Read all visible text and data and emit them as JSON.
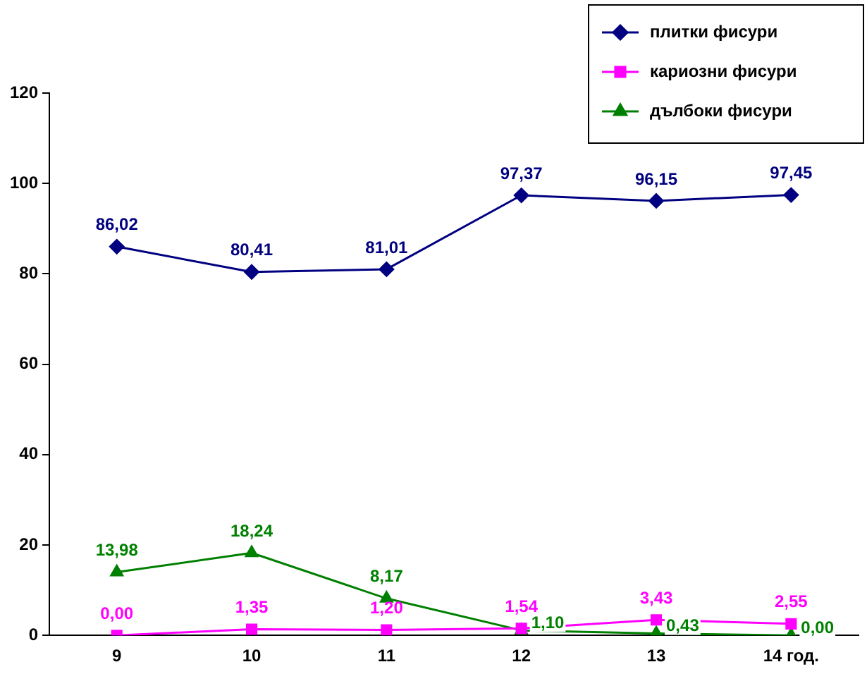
{
  "chart_data": {
    "type": "line",
    "categories": [
      "9",
      "10",
      "11",
      "12",
      "13",
      "14 год."
    ],
    "series": [
      {
        "name": "плитки фисури",
        "color": "#000080",
        "marker": "diamond",
        "values": [
          86.02,
          80.41,
          81.01,
          97.37,
          96.15,
          97.45
        ],
        "value_labels": [
          "86,02",
          "80,41",
          "81,01",
          "97,37",
          "96,15",
          "97,45"
        ]
      },
      {
        "name": "кариозни фисури",
        "color": "#ff00ff",
        "marker": "square",
        "values": [
          0.0,
          1.35,
          1.2,
          1.54,
          3.43,
          2.55
        ],
        "value_labels": [
          "0,00",
          "1,35",
          "1,20",
          "1,54",
          "3,43",
          "2,55"
        ]
      },
      {
        "name": "дълбоки фисури",
        "color": "#008000",
        "marker": "triangle",
        "values": [
          13.98,
          18.24,
          8.17,
          1.1,
          0.43,
          0.0
        ],
        "value_labels": [
          "13,98",
          "18,24",
          "8,17",
          "1,10",
          "0,43",
          "0,00"
        ]
      }
    ],
    "ylim": [
      0,
      120
    ],
    "yticks": [
      0,
      20,
      40,
      60,
      80,
      100,
      120
    ],
    "grid": false,
    "legend": "top right"
  }
}
